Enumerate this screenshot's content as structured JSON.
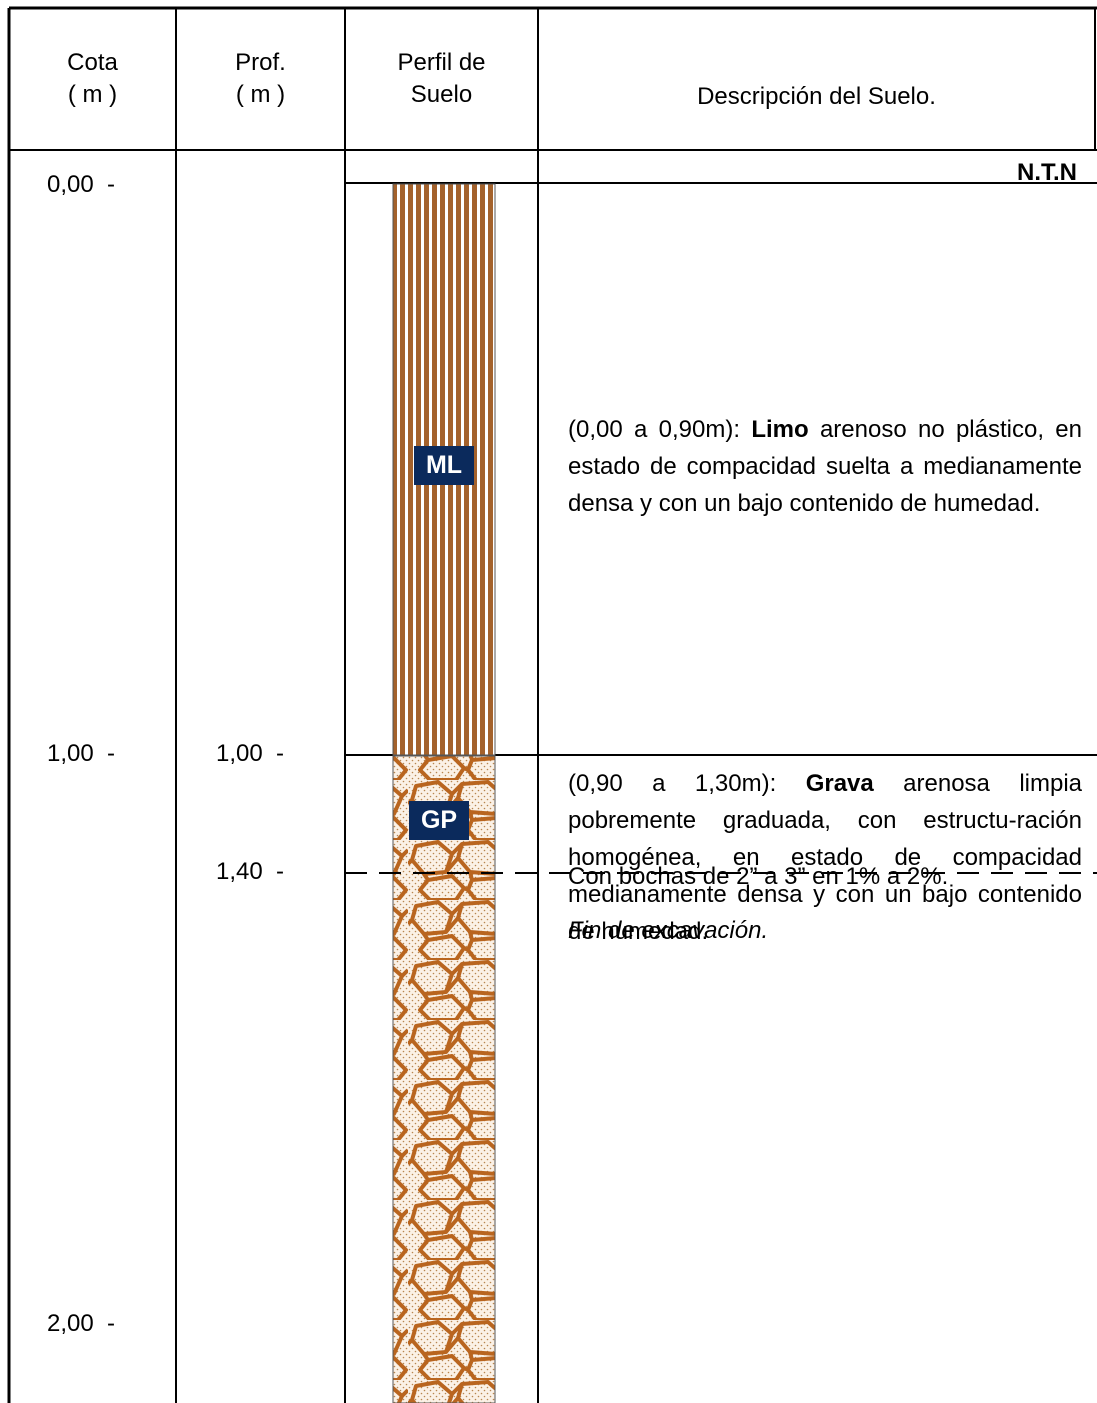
{
  "header": {
    "cota": "Cota",
    "cota_unit": "( m )",
    "prof": "Prof.",
    "prof_unit": "( m )",
    "perfil_1": "Perfil de",
    "perfil_2": "Suelo",
    "descripcion": "Descripción del Suelo."
  },
  "ground_level": "N.T.N",
  "cota_labels": [
    "0,00  -",
    "1,00  -",
    "2,00  -"
  ],
  "prof_labels": [
    "1,00  -",
    "1,40  -"
  ],
  "layers": [
    {
      "code": "ML",
      "range": "(0,00 a 0,90m): ",
      "soil": "Limo",
      "text": " arenoso no plástico, en estado de compacidad suelta a medianamente densa y con un bajo contenido de humedad."
    },
    {
      "code": "GP",
      "range": "(0,90 a 1,30m): ",
      "soil": "Grava",
      "text": " arenosa limpia pobremente graduada, con estructu-ración homogénea, en estado de compacidad medianamente densa y con un bajo contenido de humedad.",
      "note": "Con bochas de 2” a 3” en 1% a 2%."
    }
  ],
  "end_note": "Fin de excavación."
}
